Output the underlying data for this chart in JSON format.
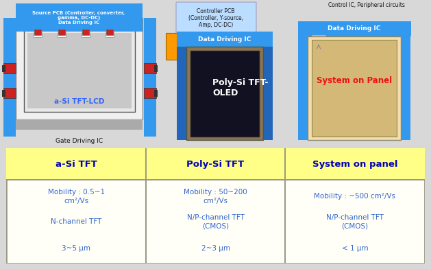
{
  "bg_color": "#d8d8d8",
  "fig_width": 6.29,
  "fig_height": 3.92,
  "table": {
    "headers": [
      "a-Si TFT",
      "Poly-Si TFT",
      "System on panel"
    ],
    "header_color": "#ffff88",
    "header_text_color": "#0000bb",
    "cell_bg": "#fffff8",
    "cell_text_color": "#3366cc",
    "border_color": "#999988",
    "col1": [
      "Mobility : 0.5~1\ncm²/Vs",
      "N-channel TFT",
      "3~5 μm"
    ],
    "col2": [
      "Mobility : 50~200\ncm²/Vs",
      "N/P-channel TFT\n(CMOS)",
      "2~3 μm"
    ],
    "col3": [
      "Mobility : ~500 cm²/Vs",
      "N/P-channel TFT\n(CMOS)",
      "< 1 μm"
    ]
  },
  "diagram": {
    "aSi_label": "a-Si TFT-LCD",
    "aSi_text_color": "#3366ff",
    "polySi_label": "Poly-Si TFT-\nOLED",
    "polySi_text_color": "#ffffff",
    "sop_label": "System on Panel",
    "sop_text_color": "#ee1111",
    "source_pcb_text": "Source PCB (Controller, converter,\ngamma, DC-DC)\nData Driving IC",
    "ctrl_pcb_text": "Controller PCB\n(Controller, Y-source,\nAmp, DC-DC)",
    "ctrl_ic_text": "Control IC, Peripheral circuits",
    "data_driving1": "Data Driving IC",
    "data_driving2": "Data Driving IC",
    "gate_driving": "Gate Driving IC",
    "blue_bright": "#3399ee",
    "blue_mid": "#2266bb",
    "blue_dark": "#1144aa",
    "light_blue_box": "#bbddff",
    "orange_color": "#ff9900",
    "red_conn": "#cc2222",
    "white_border": "#ffffff",
    "screen_bg": "#e8e8e8",
    "oled_bg": "#111122",
    "sop_bg": "#f5ddb0"
  }
}
